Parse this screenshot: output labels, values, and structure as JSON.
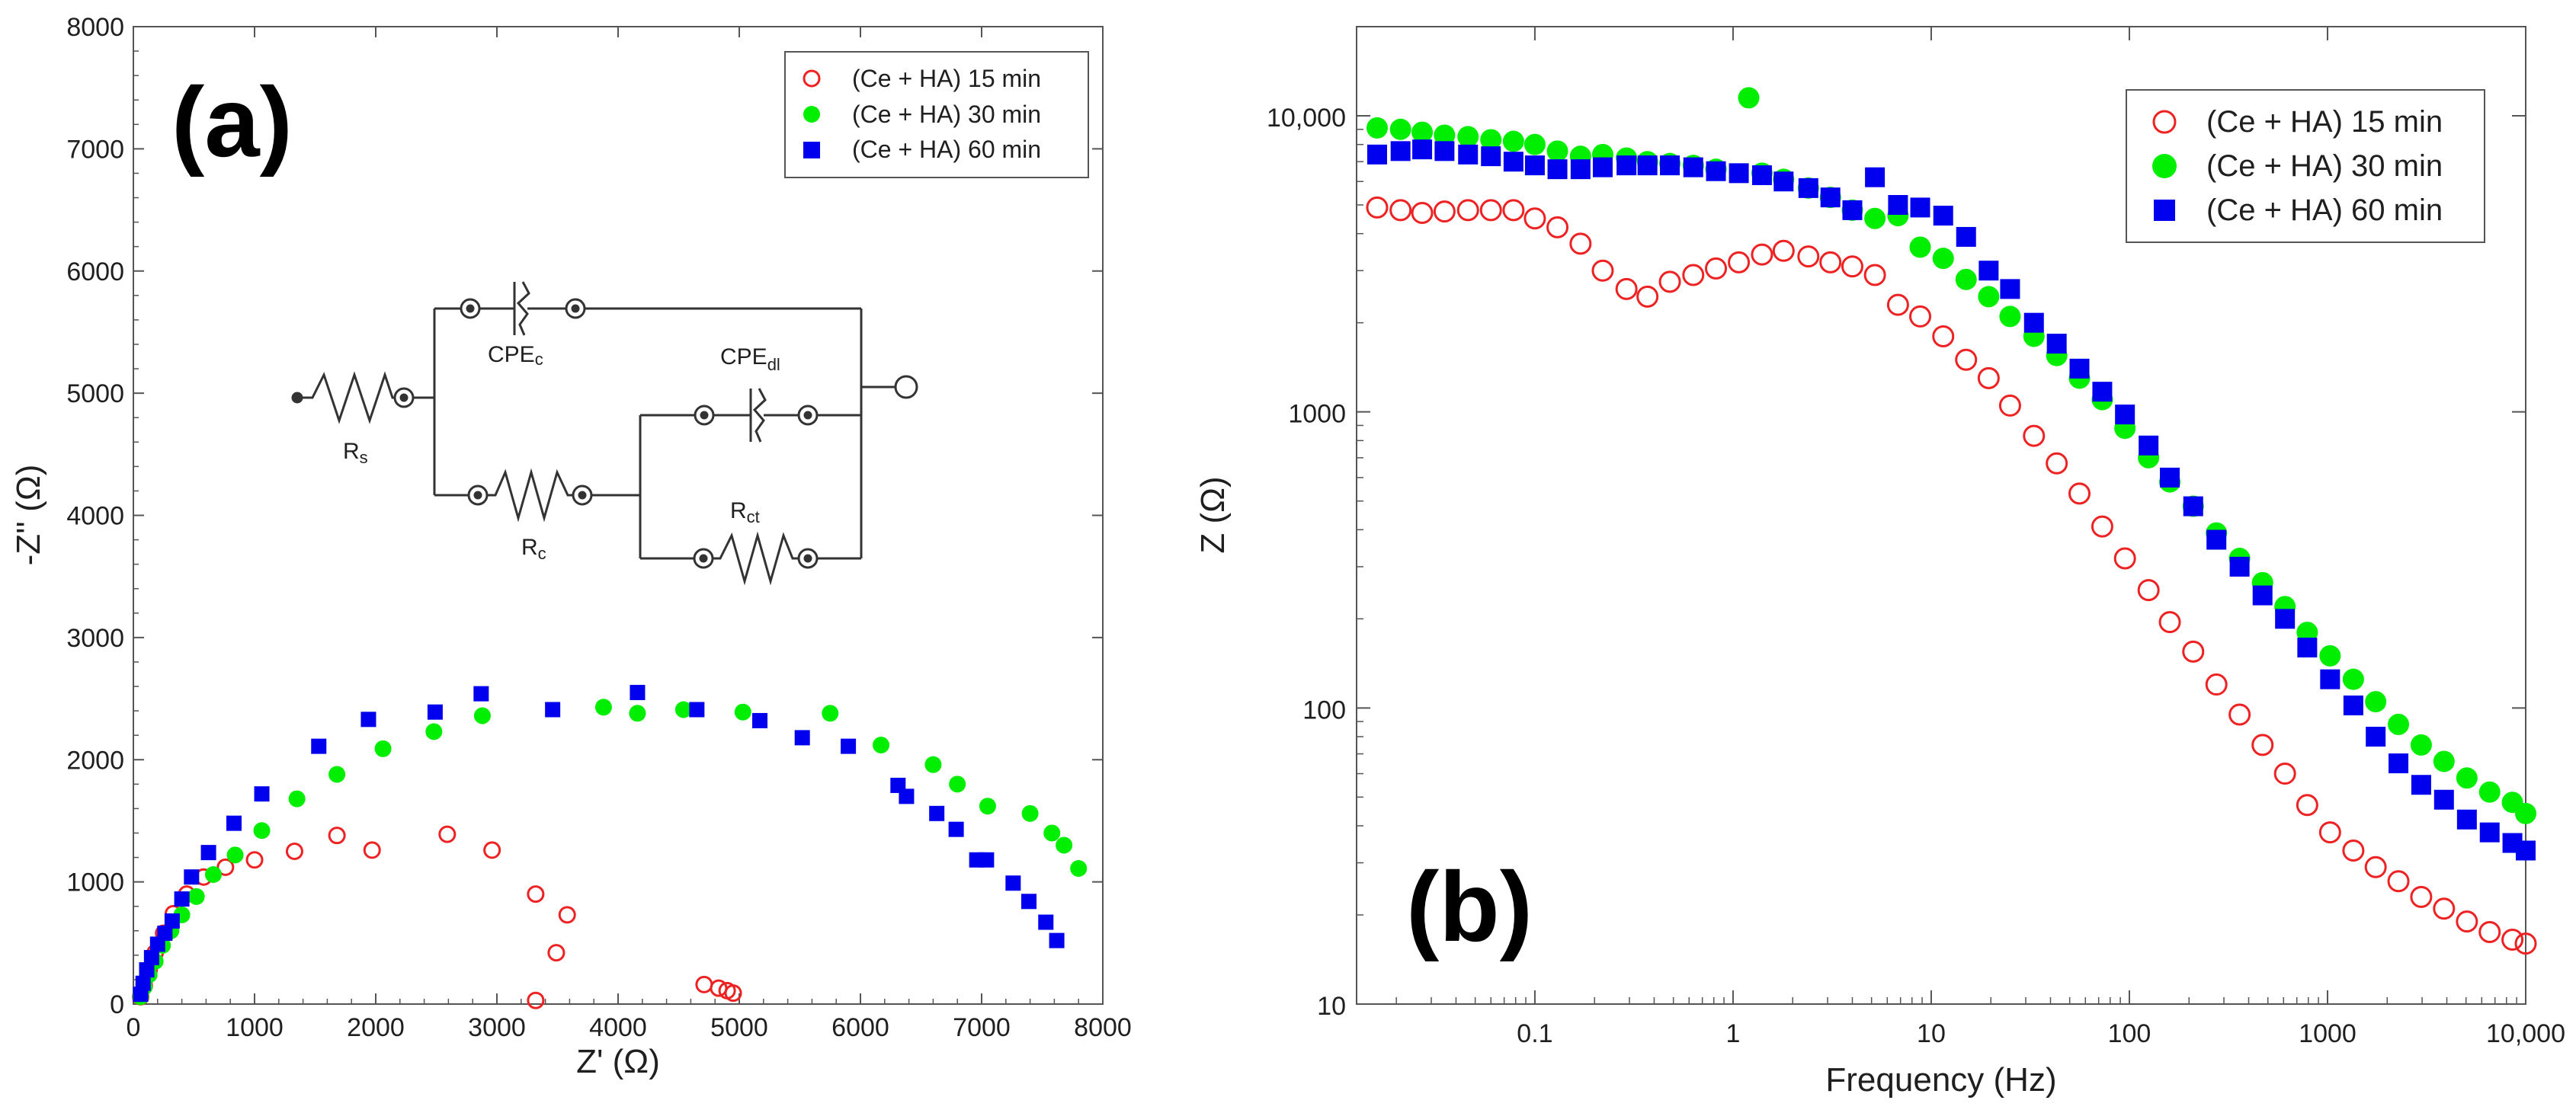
{
  "chart_data": [
    {
      "panel": "(a)",
      "type": "scatter",
      "title": "",
      "xlabel": "Z' (Ω)",
      "ylabel": "-Z'' (Ω)",
      "xlim": [
        0,
        8000
      ],
      "ylim": [
        0,
        8000
      ],
      "xticks": [
        "0",
        "1000",
        "2000",
        "3000",
        "4000",
        "5000",
        "6000",
        "7000",
        "8000"
      ],
      "yticks": [
        "0",
        "1000",
        "2000",
        "3000",
        "4000",
        "5000",
        "6000",
        "7000",
        "8000"
      ],
      "legend_position": "top-right",
      "circuit": {
        "labels": [
          "R",
          "s",
          "CPE",
          "c",
          "R",
          "c",
          "CPE",
          "dl",
          "R",
          "ct"
        ]
      },
      "series": [
        {
          "name": "(Ce + HA) 15 min",
          "color": "#ee2222",
          "marker": "open-circle",
          "points": [
            [
              60,
              60
            ],
            [
              90,
              150
            ],
            [
              130,
              280
            ],
            [
              180,
              420
            ],
            [
              250,
              580
            ],
            [
              330,
              740
            ],
            [
              440,
              900
            ],
            [
              580,
              1040
            ],
            [
              760,
              1120
            ],
            [
              1000,
              1180
            ],
            [
              1330,
              1250
            ],
            [
              1680,
              1380
            ],
            [
              1970,
              1260
            ],
            [
              2590,
              1390
            ],
            [
              2960,
              1260
            ],
            [
              3320,
              900
            ],
            [
              3580,
              730
            ],
            [
              3490,
              420
            ],
            [
              3320,
              30
            ],
            [
              4710,
              160
            ],
            [
              4830,
              130
            ],
            [
              4900,
              110
            ],
            [
              4950,
              90
            ]
          ]
        },
        {
          "name": "(Ce + HA) 30 min",
          "color": "#00ee00",
          "marker": "filled-circle",
          "points": [
            [
              60,
              60
            ],
            [
              90,
              140
            ],
            [
              130,
              240
            ],
            [
              180,
              350
            ],
            [
              240,
              480
            ],
            [
              310,
              600
            ],
            [
              400,
              730
            ],
            [
              520,
              880
            ],
            [
              660,
              1060
            ],
            [
              840,
              1220
            ],
            [
              1060,
              1420
            ],
            [
              1350,
              1680
            ],
            [
              1680,
              1880
            ],
            [
              2060,
              2090
            ],
            [
              2480,
              2230
            ],
            [
              2880,
              2360
            ],
            [
              3880,
              2430
            ],
            [
              4160,
              2380
            ],
            [
              4540,
              2410
            ],
            [
              5030,
              2390
            ],
            [
              5750,
              2380
            ],
            [
              6170,
              2120
            ],
            [
              6600,
              1960
            ],
            [
              6800,
              1800
            ],
            [
              7050,
              1620
            ],
            [
              7400,
              1560
            ],
            [
              7580,
              1400
            ],
            [
              7680,
              1300
            ],
            [
              7800,
              1110
            ]
          ]
        },
        {
          "name": "(Ce + HA) 60 min",
          "color": "#0000ee",
          "marker": "filled-square",
          "points": [
            [
              60,
              80
            ],
            [
              80,
              170
            ],
            [
              110,
              280
            ],
            [
              150,
              380
            ],
            [
              200,
              490
            ],
            [
              260,
              580
            ],
            [
              320,
              680
            ],
            [
              400,
              860
            ],
            [
              480,
              1040
            ],
            [
              620,
              1240
            ],
            [
              830,
              1480
            ],
            [
              1060,
              1720
            ],
            [
              1530,
              2110
            ],
            [
              1940,
              2330
            ],
            [
              2490,
              2390
            ],
            [
              2870,
              2540
            ],
            [
              3460,
              2410
            ],
            [
              4160,
              2550
            ],
            [
              4650,
              2410
            ],
            [
              5170,
              2320
            ],
            [
              5520,
              2180
            ],
            [
              5900,
              2110
            ],
            [
              6310,
              1790
            ],
            [
              6380,
              1700
            ],
            [
              6630,
              1560
            ],
            [
              6790,
              1430
            ],
            [
              6960,
              1180
            ],
            [
              7040,
              1180
            ],
            [
              7260,
              990
            ],
            [
              7390,
              840
            ],
            [
              7530,
              670
            ],
            [
              7620,
              520
            ]
          ]
        }
      ]
    },
    {
      "panel": "(b)",
      "type": "scatter",
      "title": "",
      "xlabel": "Frequency (Hz)",
      "ylabel": "Z (Ω)",
      "xscale": "log",
      "yscale": "log",
      "xlim": [
        0.0126,
        10000
      ],
      "ylim": [
        10,
        20000
      ],
      "xticks": [
        "0.1",
        "1",
        "10",
        "100",
        "1000",
        "10,000"
      ],
      "yticks": [
        "10",
        "100",
        "1000",
        "10,000"
      ],
      "legend_position": "top-right",
      "series": [
        {
          "name": "(Ce + HA) 15 min",
          "color": "#ee2222",
          "marker": "open-circle",
          "points": [
            [
              0.016,
              4900
            ],
            [
              0.021,
              4800
            ],
            [
              0.027,
              4700
            ],
            [
              0.035,
              4750
            ],
            [
              0.046,
              4800
            ],
            [
              0.06,
              4800
            ],
            [
              0.078,
              4800
            ],
            [
              0.1,
              4500
            ],
            [
              0.13,
              4200
            ],
            [
              0.17,
              3700
            ],
            [
              0.22,
              3000
            ],
            [
              0.29,
              2600
            ],
            [
              0.37,
              2450
            ],
            [
              0.48,
              2750
            ],
            [
              0.63,
              2900
            ],
            [
              0.82,
              3050
            ],
            [
              1.07,
              3200
            ],
            [
              1.4,
              3400
            ],
            [
              1.8,
              3500
            ],
            [
              2.4,
              3350
            ],
            [
              3.1,
              3200
            ],
            [
              4.0,
              3100
            ],
            [
              5.2,
              2900
            ],
            [
              6.8,
              2300
            ],
            [
              8.8,
              2100
            ],
            [
              11.5,
              1800
            ],
            [
              15,
              1500
            ],
            [
              19.5,
              1300
            ],
            [
              25,
              1050
            ],
            [
              33,
              830
            ],
            [
              43,
              670
            ],
            [
              56,
              530
            ],
            [
              73,
              410
            ],
            [
              95,
              320
            ],
            [
              125,
              250
            ],
            [
              160,
              195
            ],
            [
              210,
              155
            ],
            [
              275,
              120
            ],
            [
              360,
              95
            ],
            [
              470,
              75
            ],
            [
              610,
              60
            ],
            [
              790,
              47
            ],
            [
              1030,
              38
            ],
            [
              1350,
              33
            ],
            [
              1750,
              29
            ],
            [
              2280,
              26
            ],
            [
              2970,
              23
            ],
            [
              3870,
              21
            ],
            [
              5050,
              19
            ],
            [
              6580,
              17.5
            ],
            [
              8570,
              16.5
            ],
            [
              10000,
              16
            ]
          ]
        },
        {
          "name": "(Ce + HA) 30 min",
          "color": "#00ee00",
          "marker": "filled-circle",
          "points": [
            [
              0.016,
              9100
            ],
            [
              0.021,
              9000
            ],
            [
              0.027,
              8800
            ],
            [
              0.035,
              8600
            ],
            [
              0.046,
              8500
            ],
            [
              0.06,
              8300
            ],
            [
              0.078,
              8200
            ],
            [
              0.1,
              8000
            ],
            [
              0.13,
              7600
            ],
            [
              0.17,
              7300
            ],
            [
              0.22,
              7400
            ],
            [
              0.29,
              7200
            ],
            [
              0.37,
              7000
            ],
            [
              0.48,
              6900
            ],
            [
              0.63,
              6800
            ],
            [
              0.82,
              6600
            ],
            [
              1.2,
              11500
            ],
            [
              1.4,
              6400
            ],
            [
              1.8,
              6100
            ],
            [
              2.4,
              5700
            ],
            [
              3.1,
              5300
            ],
            [
              4.0,
              4800
            ],
            [
              5.2,
              4500
            ],
            [
              6.8,
              4600
            ],
            [
              8.8,
              3600
            ],
            [
              11.5,
              3300
            ],
            [
              15,
              2800
            ],
            [
              19.5,
              2450
            ],
            [
              25,
              2100
            ],
            [
              33,
              1800
            ],
            [
              43,
              1550
            ],
            [
              56,
              1300
            ],
            [
              73,
              1100
            ],
            [
              95,
              880
            ],
            [
              125,
              700
            ],
            [
              160,
              580
            ],
            [
              210,
              480
            ],
            [
              275,
              390
            ],
            [
              360,
              320
            ],
            [
              470,
              265
            ],
            [
              610,
              220
            ],
            [
              790,
              180
            ],
            [
              1030,
              150
            ],
            [
              1350,
              125
            ],
            [
              1750,
              105
            ],
            [
              2280,
              88
            ],
            [
              2970,
              75
            ],
            [
              3870,
              66
            ],
            [
              5050,
              58
            ],
            [
              6580,
              52
            ],
            [
              8570,
              48
            ],
            [
              10000,
              44
            ]
          ]
        },
        {
          "name": "(Ce + HA) 60 min",
          "color": "#0000ee",
          "marker": "filled-square",
          "points": [
            [
              0.016,
              7400
            ],
            [
              0.021,
              7600
            ],
            [
              0.027,
              7700
            ],
            [
              0.035,
              7600
            ],
            [
              0.046,
              7400
            ],
            [
              0.06,
              7300
            ],
            [
              0.078,
              7000
            ],
            [
              0.1,
              6800
            ],
            [
              0.13,
              6600
            ],
            [
              0.17,
              6600
            ],
            [
              0.22,
              6700
            ],
            [
              0.29,
              6800
            ],
            [
              0.37,
              6800
            ],
            [
              0.48,
              6800
            ],
            [
              0.63,
              6700
            ],
            [
              0.82,
              6500
            ],
            [
              1.07,
              6400
            ],
            [
              1.4,
              6300
            ],
            [
              1.8,
              6000
            ],
            [
              2.4,
              5700
            ],
            [
              3.1,
              5300
            ],
            [
              4.0,
              4800
            ],
            [
              5.2,
              6200
            ],
            [
              6.8,
              5000
            ],
            [
              8.8,
              4900
            ],
            [
              11.5,
              4600
            ],
            [
              15,
              3900
            ],
            [
              19.5,
              3000
            ],
            [
              25,
              2600
            ],
            [
              33,
              2000
            ],
            [
              43,
              1700
            ],
            [
              56,
              1400
            ],
            [
              73,
              1170
            ],
            [
              95,
              980
            ],
            [
              125,
              770
            ],
            [
              160,
              600
            ],
            [
              210,
              480
            ],
            [
              275,
              370
            ],
            [
              360,
              300
            ],
            [
              470,
              240
            ],
            [
              610,
              200
            ],
            [
              790,
              160
            ],
            [
              1030,
              125
            ],
            [
              1350,
              102
            ],
            [
              1750,
              80
            ],
            [
              2280,
              65
            ],
            [
              2970,
              55
            ],
            [
              3870,
              49
            ],
            [
              5050,
              42
            ],
            [
              6580,
              38
            ],
            [
              8570,
              35
            ],
            [
              10000,
              33
            ]
          ]
        }
      ]
    }
  ]
}
